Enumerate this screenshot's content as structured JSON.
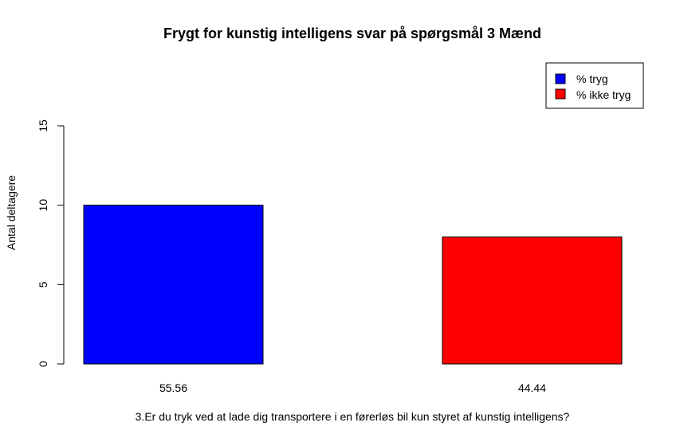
{
  "chart_data": {
    "type": "bar",
    "title": "Frygt for kunstig intelligens svar på spørgsmål 3 Mænd",
    "xlabel": "3.Er du tryk ved at lade dig transportere i en førerløs bil kun styret af kunstig intelligens?",
    "ylabel": "Antal deltagere",
    "categories": [
      "55.56",
      "44.44"
    ],
    "values": [
      10,
      8
    ],
    "colors": [
      "#0000FF",
      "#FF0000"
    ],
    "ylim": [
      0,
      15
    ],
    "yticks": [
      0,
      5,
      10,
      15
    ],
    "legend": {
      "position": "top-right",
      "entries": [
        {
          "label": "% tryg",
          "color": "#0000FF"
        },
        {
          "label": "% ikke tryg",
          "color": "#FF0000"
        }
      ]
    },
    "grid": false
  }
}
